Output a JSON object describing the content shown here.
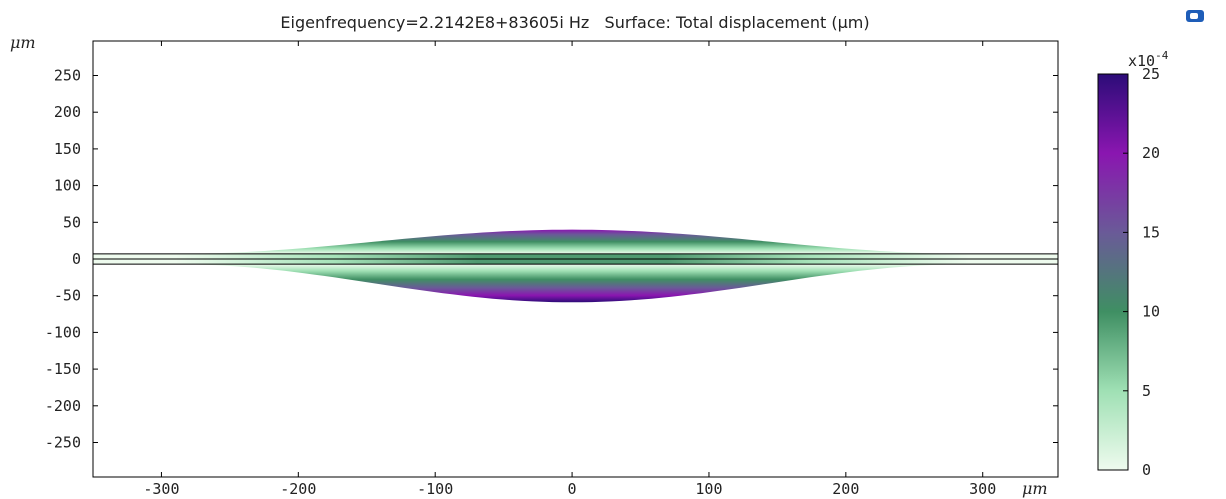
{
  "chart_data": {
    "type": "heatmap",
    "title": "Eigenfrequency=2.2142E8+83605i Hz   Surface: Total displacement (μm)",
    "xlabel": "μm",
    "ylabel": "μm",
    "xlim": [
      -350,
      355
    ],
    "ylim": [
      -297,
      297
    ],
    "x_ticks": [
      -300,
      -200,
      -100,
      0,
      100,
      200,
      300
    ],
    "y_ticks": [
      250,
      200,
      150,
      100,
      50,
      0,
      -50,
      -100,
      -150,
      -200,
      -250
    ],
    "x_tick_labels": [
      "-300",
      "-200",
      "-100",
      "0",
      "100",
      "200",
      "300"
    ],
    "y_tick_labels": [
      "250",
      "200",
      "150",
      "100",
      "50",
      "0",
      "-50",
      "-100",
      "-150",
      "-200",
      "-250"
    ],
    "plate_half_thickness": 7,
    "lens_extent_x": [
      -290,
      290
    ],
    "lens_top_peak": 40,
    "lens_bottom_peak": -59,
    "colorbar": {
      "min": 0,
      "max": 25,
      "ticks": [
        0,
        5,
        10,
        15,
        20,
        25
      ],
      "tick_labels": [
        "0",
        "5",
        "10",
        "15",
        "20",
        "25"
      ],
      "multiplier_base": "x10",
      "multiplier_exp": "-4",
      "colors": [
        "#eefbee",
        "#9fe0b4",
        "#3f8f63",
        "#6a5a98",
        "#8a16b0",
        "#2c0c78"
      ]
    },
    "grid": false,
    "legend": "right colorbar"
  },
  "icons": {
    "corner_logo": "comsol-logo-icon"
  }
}
